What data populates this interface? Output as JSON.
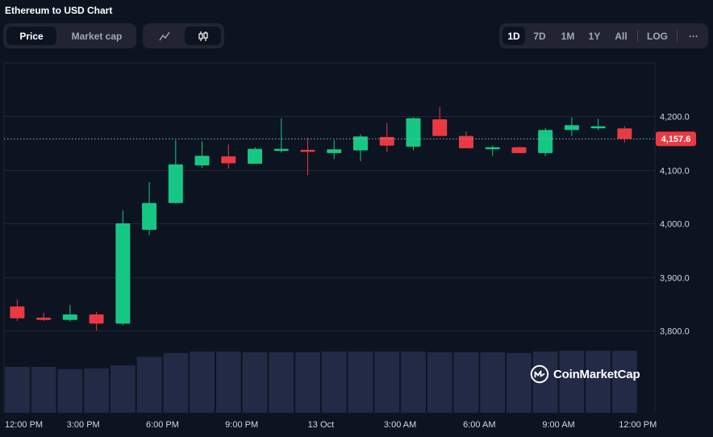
{
  "header": {
    "title": "Ethereum to USD Chart",
    "view_tabs": [
      {
        "label": "Price",
        "active": true
      },
      {
        "label": "Market cap",
        "active": false
      }
    ],
    "chart_type_buttons": [
      {
        "icon": "line-chart-icon",
        "active": false
      },
      {
        "icon": "candlestick-chart-icon",
        "active": true
      }
    ],
    "ranges": [
      {
        "label": "1D",
        "active": true
      },
      {
        "label": "7D",
        "active": false
      },
      {
        "label": "1M",
        "active": false
      },
      {
        "label": "1Y",
        "active": false
      },
      {
        "label": "All",
        "active": false
      }
    ],
    "log_label": "LOG",
    "more_label": "···"
  },
  "brand": {
    "name": "CoinMarketCap"
  },
  "colors": {
    "background": "#0d1421",
    "up": "#16c784",
    "down": "#ea3943",
    "volume": "#222a45",
    "grid": "#222531",
    "price_tag": "#ea3943"
  },
  "chart_data": {
    "type": "candlestick",
    "current_price": "4,157.6",
    "current_price_value": 4157.6,
    "ylim": [
      3700,
      4300
    ],
    "y_ticks": [
      {
        "value": 3800,
        "label": "3,800.0"
      },
      {
        "value": 3900,
        "label": "3,900.0"
      },
      {
        "value": 4000,
        "label": "4,000.0"
      },
      {
        "value": 4100,
        "label": "4,100.0"
      },
      {
        "value": 4200,
        "label": "4,200.0"
      }
    ],
    "x_ticks": [
      {
        "index": 0,
        "label": "12:00 PM"
      },
      {
        "index": 3,
        "label": "3:00 PM"
      },
      {
        "index": 6,
        "label": "6:00 PM"
      },
      {
        "index": 9,
        "label": "9:00 PM"
      },
      {
        "index": 12,
        "label": "13 Oct"
      },
      {
        "index": 15,
        "label": "3:00 AM"
      },
      {
        "index": 18,
        "label": "6:00 AM"
      },
      {
        "index": 21,
        "label": "9:00 AM"
      },
      {
        "index": 24,
        "label": "12:00 PM"
      }
    ],
    "candles": [
      {
        "o": 3845,
        "h": 3858,
        "l": 3818,
        "c": 3823
      },
      {
        "o": 3824,
        "h": 3833,
        "l": 3818,
        "c": 3820
      },
      {
        "o": 3820,
        "h": 3848,
        "l": 3817,
        "c": 3830
      },
      {
        "o": 3830,
        "h": 3835,
        "l": 3800,
        "c": 3813
      },
      {
        "o": 3813,
        "h": 4024,
        "l": 3810,
        "c": 4000
      },
      {
        "o": 3988,
        "h": 4077,
        "l": 3978,
        "c": 4038
      },
      {
        "o": 4038,
        "h": 4155,
        "l": 4037,
        "c": 4110
      },
      {
        "o": 4108,
        "h": 4153,
        "l": 4103,
        "c": 4126
      },
      {
        "o": 4125,
        "h": 4147,
        "l": 4102,
        "c": 4112
      },
      {
        "o": 4111,
        "h": 4142,
        "l": 4111,
        "c": 4139
      },
      {
        "o": 4137,
        "h": 4196,
        "l": 4132,
        "c": 4139
      },
      {
        "o": 4137,
        "h": 4160,
        "l": 4090,
        "c": 4134
      },
      {
        "o": 4131,
        "h": 4155,
        "l": 4120,
        "c": 4138
      },
      {
        "o": 4136,
        "h": 4166,
        "l": 4116,
        "c": 4162
      },
      {
        "o": 4161,
        "h": 4187,
        "l": 4133,
        "c": 4145
      },
      {
        "o": 4143,
        "h": 4198,
        "l": 4136,
        "c": 4196
      },
      {
        "o": 4194,
        "h": 4217,
        "l": 4162,
        "c": 4163
      },
      {
        "o": 4163,
        "h": 4171,
        "l": 4140,
        "c": 4140
      },
      {
        "o": 4140,
        "h": 4145,
        "l": 4126,
        "c": 4142
      },
      {
        "o": 4142,
        "h": 4143,
        "l": 4131,
        "c": 4131
      },
      {
        "o": 4131,
        "h": 4178,
        "l": 4125,
        "c": 4174
      },
      {
        "o": 4174,
        "h": 4198,
        "l": 4163,
        "c": 4183
      },
      {
        "o": 4180,
        "h": 4195,
        "l": 4174,
        "c": 4181
      },
      {
        "o": 4177,
        "h": 4181,
        "l": 4151,
        "c": 4157.6
      }
    ],
    "volume": [
      60,
      60,
      57,
      58,
      62,
      73,
      78,
      80,
      80,
      79,
      79,
      79,
      80,
      80,
      80,
      80,
      79,
      79,
      79,
      78,
      80,
      81,
      81,
      81
    ],
    "volume_max": 100
  }
}
